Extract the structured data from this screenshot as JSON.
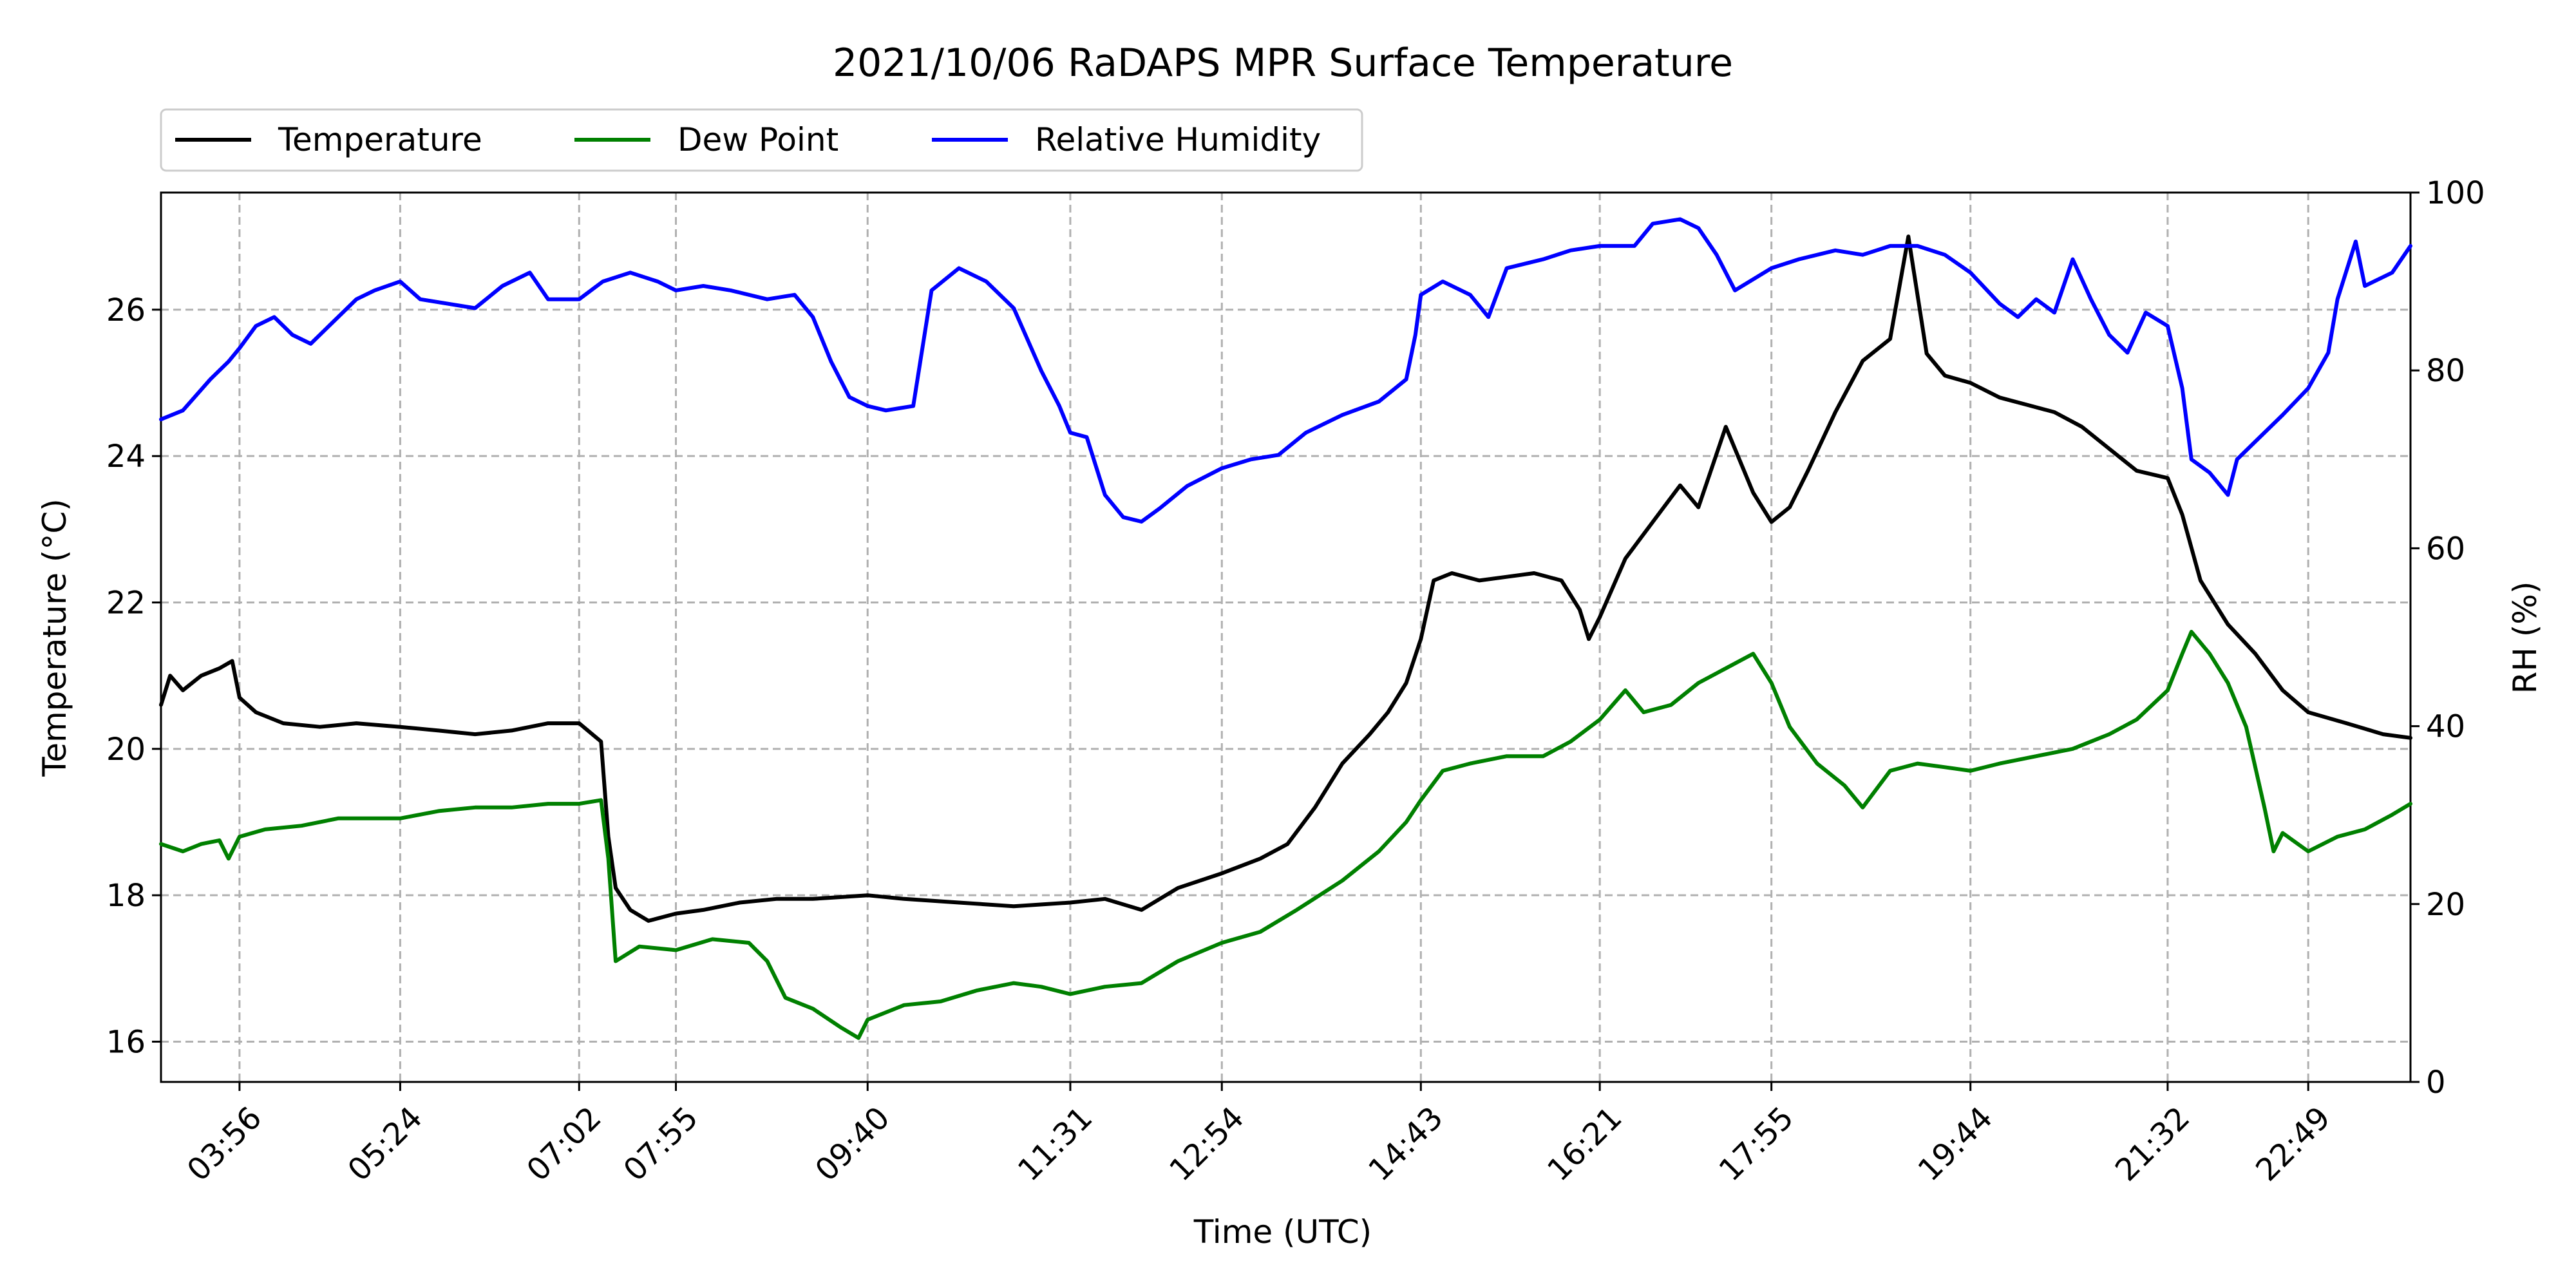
{
  "chart_data": {
    "type": "line",
    "title": "2021/10/06 RaDAPS MPR Surface Temperature",
    "xlabel": "Time (UTC)",
    "ylabel_left": "Temperature ($^\\circ$C)",
    "ylabel_left_display": "Temperature (°C)",
    "ylabel_right": "RH (%)",
    "xlim": [
      "03:13",
      "23:45"
    ],
    "ylim_left": [
      15.45,
      27.6
    ],
    "ylim_right": [
      0,
      100
    ],
    "x_ticks": [
      "03:56",
      "05:24",
      "07:02",
      "07:55",
      "09:40",
      "11:31",
      "12:54",
      "14:43",
      "16:21",
      "17:55",
      "19:44",
      "21:32",
      "22:49"
    ],
    "y_ticks_left": [
      16,
      18,
      20,
      22,
      24,
      26
    ],
    "y_ticks_right": [
      0,
      20,
      40,
      60,
      80,
      100
    ],
    "grid": true,
    "legend_placement": "top-left, above plot",
    "series": [
      {
        "name": "Temperature",
        "axis": "left",
        "color": "#000000",
        "points": [
          [
            "03:13",
            20.6
          ],
          [
            "03:18",
            21.0
          ],
          [
            "03:25",
            20.8
          ],
          [
            "03:35",
            21.0
          ],
          [
            "03:45",
            21.1
          ],
          [
            "03:52",
            21.2
          ],
          [
            "03:56",
            20.7
          ],
          [
            "04:05",
            20.5
          ],
          [
            "04:20",
            20.35
          ],
          [
            "04:40",
            20.3
          ],
          [
            "05:00",
            20.35
          ],
          [
            "05:24",
            20.3
          ],
          [
            "05:45",
            20.25
          ],
          [
            "06:05",
            20.2
          ],
          [
            "06:25",
            20.25
          ],
          [
            "06:45",
            20.35
          ],
          [
            "07:02",
            20.35
          ],
          [
            "07:14",
            20.1
          ],
          [
            "07:18",
            18.8
          ],
          [
            "07:22",
            18.1
          ],
          [
            "07:30",
            17.8
          ],
          [
            "07:40",
            17.65
          ],
          [
            "07:55",
            17.75
          ],
          [
            "08:10",
            17.8
          ],
          [
            "08:30",
            17.9
          ],
          [
            "08:50",
            17.95
          ],
          [
            "09:10",
            17.95
          ],
          [
            "09:40",
            18.0
          ],
          [
            "10:00",
            17.95
          ],
          [
            "10:30",
            17.9
          ],
          [
            "11:00",
            17.85
          ],
          [
            "11:31",
            17.9
          ],
          [
            "11:50",
            17.95
          ],
          [
            "12:10",
            17.8
          ],
          [
            "12:30",
            18.1
          ],
          [
            "12:54",
            18.3
          ],
          [
            "13:15",
            18.5
          ],
          [
            "13:30",
            18.7
          ],
          [
            "13:45",
            19.2
          ],
          [
            "14:00",
            19.8
          ],
          [
            "14:15",
            20.2
          ],
          [
            "14:25",
            20.5
          ],
          [
            "14:35",
            20.9
          ],
          [
            "14:43",
            21.5
          ],
          [
            "14:50",
            22.3
          ],
          [
            "15:00",
            22.4
          ],
          [
            "15:15",
            22.3
          ],
          [
            "15:30",
            22.35
          ],
          [
            "15:45",
            22.4
          ],
          [
            "16:00",
            22.3
          ],
          [
            "16:10",
            21.9
          ],
          [
            "16:15",
            21.5
          ],
          [
            "16:21",
            21.8
          ],
          [
            "16:35",
            22.6
          ],
          [
            "16:50",
            23.1
          ],
          [
            "17:05",
            23.6
          ],
          [
            "17:15",
            23.3
          ],
          [
            "17:30",
            24.4
          ],
          [
            "17:45",
            23.5
          ],
          [
            "17:55",
            23.1
          ],
          [
            "18:05",
            23.3
          ],
          [
            "18:15",
            23.8
          ],
          [
            "18:30",
            24.6
          ],
          [
            "18:45",
            25.3
          ],
          [
            "19:00",
            25.6
          ],
          [
            "19:10",
            27.0
          ],
          [
            "19:20",
            25.4
          ],
          [
            "19:30",
            25.1
          ],
          [
            "19:44",
            25.0
          ],
          [
            "20:00",
            24.8
          ],
          [
            "20:15",
            24.7
          ],
          [
            "20:30",
            24.6
          ],
          [
            "20:45",
            24.4
          ],
          [
            "21:00",
            24.1
          ],
          [
            "21:15",
            23.8
          ],
          [
            "21:32",
            23.7
          ],
          [
            "21:40",
            23.2
          ],
          [
            "21:50",
            22.3
          ],
          [
            "22:05",
            21.7
          ],
          [
            "22:20",
            21.3
          ],
          [
            "22:35",
            20.8
          ],
          [
            "22:49",
            20.5
          ],
          [
            "23:10",
            20.35
          ],
          [
            "23:30",
            20.2
          ],
          [
            "23:45",
            20.15
          ]
        ]
      },
      {
        "name": "Dew Point",
        "axis": "left",
        "color": "#008000",
        "points": [
          [
            "03:13",
            18.7
          ],
          [
            "03:25",
            18.6
          ],
          [
            "03:35",
            18.7
          ],
          [
            "03:45",
            18.75
          ],
          [
            "03:50",
            18.5
          ],
          [
            "03:56",
            18.8
          ],
          [
            "04:10",
            18.9
          ],
          [
            "04:30",
            18.95
          ],
          [
            "04:50",
            19.05
          ],
          [
            "05:10",
            19.05
          ],
          [
            "05:24",
            19.05
          ],
          [
            "05:45",
            19.15
          ],
          [
            "06:05",
            19.2
          ],
          [
            "06:25",
            19.2
          ],
          [
            "06:45",
            19.25
          ],
          [
            "07:02",
            19.25
          ],
          [
            "07:14",
            19.3
          ],
          [
            "07:18",
            18.5
          ],
          [
            "07:22",
            17.1
          ],
          [
            "07:35",
            17.3
          ],
          [
            "07:55",
            17.25
          ],
          [
            "08:15",
            17.4
          ],
          [
            "08:35",
            17.35
          ],
          [
            "08:45",
            17.1
          ],
          [
            "08:55",
            16.6
          ],
          [
            "09:10",
            16.45
          ],
          [
            "09:25",
            16.2
          ],
          [
            "09:35",
            16.05
          ],
          [
            "09:40",
            16.3
          ],
          [
            "10:00",
            16.5
          ],
          [
            "10:20",
            16.55
          ],
          [
            "10:40",
            16.7
          ],
          [
            "11:00",
            16.8
          ],
          [
            "11:15",
            16.75
          ],
          [
            "11:31",
            16.65
          ],
          [
            "11:50",
            16.75
          ],
          [
            "12:10",
            16.8
          ],
          [
            "12:30",
            17.1
          ],
          [
            "12:54",
            17.35
          ],
          [
            "13:15",
            17.5
          ],
          [
            "13:35",
            17.8
          ],
          [
            "14:00",
            18.2
          ],
          [
            "14:20",
            18.6
          ],
          [
            "14:35",
            19.0
          ],
          [
            "14:43",
            19.3
          ],
          [
            "14:55",
            19.7
          ],
          [
            "15:10",
            19.8
          ],
          [
            "15:30",
            19.9
          ],
          [
            "15:50",
            19.9
          ],
          [
            "16:05",
            20.1
          ],
          [
            "16:21",
            20.4
          ],
          [
            "16:35",
            20.8
          ],
          [
            "16:45",
            20.5
          ],
          [
            "17:00",
            20.6
          ],
          [
            "17:15",
            20.9
          ],
          [
            "17:30",
            21.1
          ],
          [
            "17:45",
            21.3
          ],
          [
            "17:55",
            20.9
          ],
          [
            "18:05",
            20.3
          ],
          [
            "18:20",
            19.8
          ],
          [
            "18:35",
            19.5
          ],
          [
            "18:45",
            19.2
          ],
          [
            "19:00",
            19.7
          ],
          [
            "19:15",
            19.8
          ],
          [
            "19:30",
            19.75
          ],
          [
            "19:44",
            19.7
          ],
          [
            "20:00",
            19.8
          ],
          [
            "20:20",
            19.9
          ],
          [
            "20:40",
            20.0
          ],
          [
            "21:00",
            20.2
          ],
          [
            "21:15",
            20.4
          ],
          [
            "21:32",
            20.8
          ],
          [
            "21:40",
            21.3
          ],
          [
            "21:45",
            21.6
          ],
          [
            "21:55",
            21.3
          ],
          [
            "22:05",
            20.9
          ],
          [
            "22:15",
            20.3
          ],
          [
            "22:25",
            19.2
          ],
          [
            "22:30",
            18.6
          ],
          [
            "22:35",
            18.85
          ],
          [
            "22:49",
            18.6
          ],
          [
            "23:05",
            18.8
          ],
          [
            "23:20",
            18.9
          ],
          [
            "23:35",
            19.1
          ],
          [
            "23:45",
            19.25
          ]
        ]
      },
      {
        "name": "Relative Humidity",
        "axis": "right",
        "color": "#0000ff",
        "points": [
          [
            "03:13",
            74.5
          ],
          [
            "03:25",
            75.5
          ],
          [
            "03:40",
            79.0
          ],
          [
            "03:50",
            81.0
          ],
          [
            "03:56",
            82.5
          ],
          [
            "04:05",
            85.0
          ],
          [
            "04:15",
            86.0
          ],
          [
            "04:25",
            84.0
          ],
          [
            "04:35",
            83.0
          ],
          [
            "04:45",
            85.0
          ],
          [
            "05:00",
            88.0
          ],
          [
            "05:10",
            89.0
          ],
          [
            "05:24",
            90.0
          ],
          [
            "05:35",
            88.0
          ],
          [
            "05:50",
            87.5
          ],
          [
            "06:05",
            87.0
          ],
          [
            "06:20",
            89.5
          ],
          [
            "06:35",
            91.0
          ],
          [
            "06:45",
            88.0
          ],
          [
            "07:02",
            88.0
          ],
          [
            "07:15",
            90.0
          ],
          [
            "07:30",
            91.0
          ],
          [
            "07:45",
            90.0
          ],
          [
            "07:55",
            89.0
          ],
          [
            "08:10",
            89.5
          ],
          [
            "08:25",
            89.0
          ],
          [
            "08:45",
            88.0
          ],
          [
            "09:00",
            88.5
          ],
          [
            "09:10",
            86.0
          ],
          [
            "09:20",
            81.0
          ],
          [
            "09:30",
            77.0
          ],
          [
            "09:40",
            76.0
          ],
          [
            "09:50",
            75.5
          ],
          [
            "10:05",
            76.0
          ],
          [
            "10:15",
            89.0
          ],
          [
            "10:30",
            91.5
          ],
          [
            "10:45",
            90.0
          ],
          [
            "11:00",
            87.0
          ],
          [
            "11:15",
            80.0
          ],
          [
            "11:25",
            76.0
          ],
          [
            "11:31",
            73.0
          ],
          [
            "11:40",
            72.5
          ],
          [
            "11:50",
            66.0
          ],
          [
            "12:00",
            63.5
          ],
          [
            "12:10",
            63.0
          ],
          [
            "12:20",
            64.5
          ],
          [
            "12:35",
            67.0
          ],
          [
            "12:54",
            69.0
          ],
          [
            "13:10",
            70.0
          ],
          [
            "13:25",
            70.5
          ],
          [
            "13:40",
            73.0
          ],
          [
            "14:00",
            75.0
          ],
          [
            "14:20",
            76.5
          ],
          [
            "14:35",
            79.0
          ],
          [
            "14:40",
            84.0
          ],
          [
            "14:43",
            88.5
          ],
          [
            "14:55",
            90.0
          ],
          [
            "15:10",
            88.5
          ],
          [
            "15:20",
            86.0
          ],
          [
            "15:30",
            91.5
          ],
          [
            "15:50",
            92.5
          ],
          [
            "16:05",
            93.5
          ],
          [
            "16:21",
            94.0
          ],
          [
            "16:40",
            94.0
          ],
          [
            "16:50",
            96.5
          ],
          [
            "17:05",
            97.0
          ],
          [
            "17:15",
            96.0
          ],
          [
            "17:25",
            93.0
          ],
          [
            "17:35",
            89.0
          ],
          [
            "17:55",
            91.5
          ],
          [
            "18:10",
            92.5
          ],
          [
            "18:30",
            93.5
          ],
          [
            "18:45",
            93.0
          ],
          [
            "19:00",
            94.0
          ],
          [
            "19:15",
            94.0
          ],
          [
            "19:30",
            93.0
          ],
          [
            "19:44",
            91.0
          ],
          [
            "20:00",
            87.5
          ],
          [
            "20:10",
            86.0
          ],
          [
            "20:20",
            88.0
          ],
          [
            "20:30",
            86.5
          ],
          [
            "20:40",
            92.5
          ],
          [
            "20:50",
            88.0
          ],
          [
            "21:00",
            84.0
          ],
          [
            "21:10",
            82.0
          ],
          [
            "21:20",
            86.5
          ],
          [
            "21:32",
            85.0
          ],
          [
            "21:40",
            78.0
          ],
          [
            "21:45",
            70.0
          ],
          [
            "21:55",
            68.5
          ],
          [
            "22:05",
            66.0
          ],
          [
            "22:10",
            70.0
          ],
          [
            "22:20",
            72.0
          ],
          [
            "22:35",
            75.0
          ],
          [
            "22:49",
            78.0
          ],
          [
            "23:00",
            82.0
          ],
          [
            "23:05",
            88.0
          ],
          [
            "23:15",
            94.5
          ],
          [
            "23:20",
            89.5
          ],
          [
            "23:25",
            90.0
          ],
          [
            "23:35",
            91.0
          ],
          [
            "23:45",
            94.0
          ]
        ]
      }
    ]
  }
}
